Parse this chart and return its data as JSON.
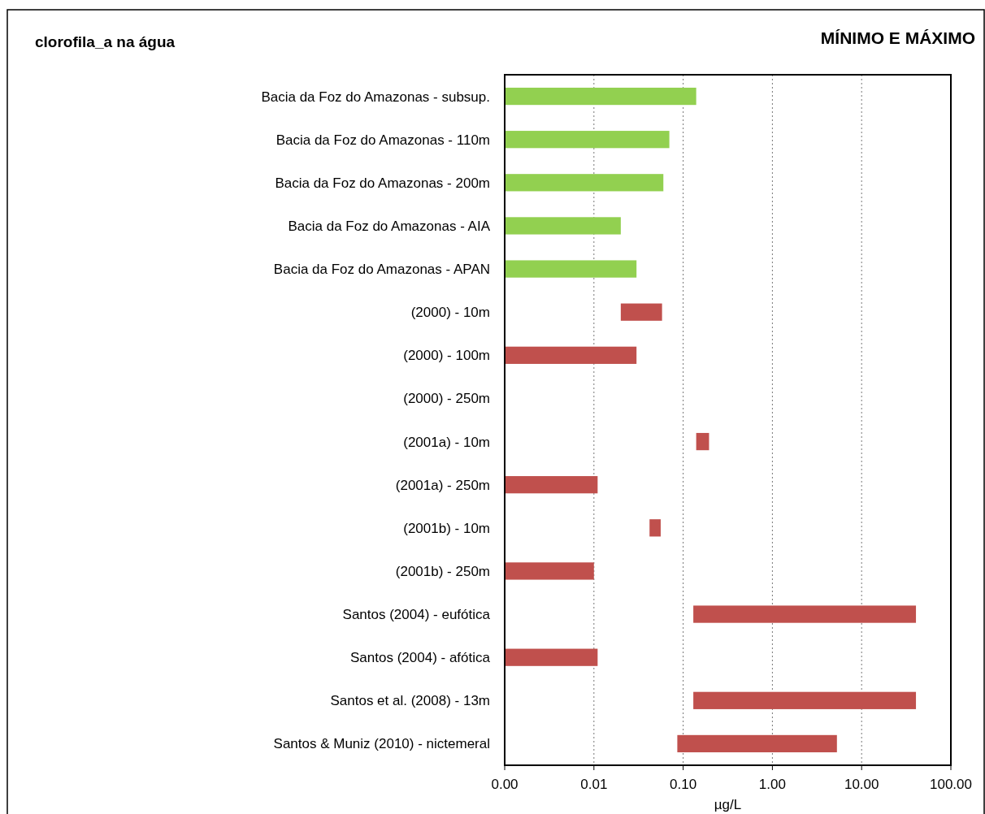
{
  "chart_data": {
    "type": "bar",
    "orientation": "horizontal",
    "title": "clorofila_a na água",
    "subtitle": "MÍNIMO E MÁXIMO",
    "xlabel": "µg/L",
    "categories": [
      "Bacia da Foz do Amazonas - subsup.",
      "Bacia da Foz do Amazonas - 110m",
      "Bacia da Foz do Amazonas - 200m",
      "Bacia da Foz do Amazonas - AIA",
      "Bacia da Foz do Amazonas - APAN",
      "(2000) - 10m",
      "(2000) - 100m",
      "(2000) - 250m",
      "(2001a) - 10m",
      "(2001a) - 250m",
      "(2001b) - 10m",
      "(2001b) - 250m",
      "Santos (2004) - eufótica",
      "Santos (2004) - afótica",
      "Santos et al.  (2008) - 13m",
      "Santos & Muniz (2010) - nictemeral"
    ],
    "base": [
      0.001,
      0.001,
      0.001,
      0.001,
      0.001,
      0.02,
      0.001,
      null,
      0.14,
      0.001,
      0.042,
      0.001,
      0.13,
      0.001,
      0.13,
      0.086
    ],
    "values": [
      0.139,
      0.069,
      0.059,
      0.019,
      0.029,
      0.038,
      0.029,
      null,
      0.055,
      0.01,
      0.014,
      0.009,
      40.5,
      0.01,
      40.5,
      5.2
    ],
    "colors": [
      "#92d050",
      "#92d050",
      "#92d050",
      "#92d050",
      "#92d050",
      "#c0504d",
      "#c0504d",
      null,
      "#c0504d",
      "#c0504d",
      "#c0504d",
      "#c0504d",
      "#c0504d",
      "#c0504d",
      "#c0504d",
      "#c0504d"
    ],
    "log": "x",
    "xlim": [
      0.001,
      100
    ],
    "xticks": [
      {
        "value": 0.001,
        "label": "0.00"
      },
      {
        "value": 0.01,
        "label": "0.01"
      },
      {
        "value": 0.1,
        "label": "0.10"
      },
      {
        "value": 1,
        "label": "1.00"
      },
      {
        "value": 10,
        "label": "10.00"
      },
      {
        "value": 100,
        "label": "100.00"
      }
    ],
    "grid": "x"
  }
}
